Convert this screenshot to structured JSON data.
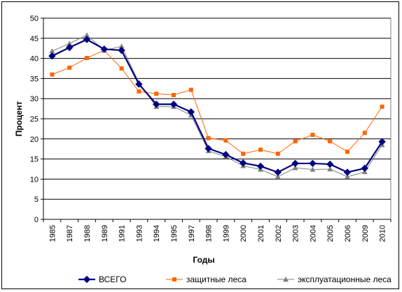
{
  "chart_data": {
    "type": "line",
    "title": "",
    "xlabel": "Годы",
    "ylabel": "Процент",
    "ylim": [
      0,
      50
    ],
    "yticks": [
      0,
      5,
      10,
      15,
      20,
      25,
      30,
      35,
      40,
      45,
      50
    ],
    "grid": "horizontal",
    "legend_position": "bottom",
    "categories": [
      "1985",
      "1987",
      "1988",
      "1989",
      "1991",
      "1993",
      "1994",
      "1995",
      "1997",
      "1998",
      "1999",
      "2000",
      "2001",
      "2002",
      "2003",
      "2004",
      "2005",
      "2006",
      "2009",
      "2010"
    ],
    "series": [
      {
        "name": "ВСЕГО",
        "color": "#000080",
        "marker": "diamond",
        "values": [
          40.6,
          42.7,
          44.7,
          42.3,
          42.0,
          33.6,
          28.6,
          28.6,
          26.7,
          17.6,
          16.1,
          14.0,
          13.2,
          11.7,
          13.9,
          13.9,
          13.7,
          11.7,
          12.7,
          19.3
        ]
      },
      {
        "name": "защитные леса",
        "color": "#FF6600",
        "marker": "square",
        "values": [
          36.0,
          37.7,
          40.1,
          42.0,
          37.5,
          31.8,
          31.2,
          30.9,
          32.2,
          20.2,
          19.6,
          16.3,
          17.3,
          16.3,
          19.4,
          21.0,
          19.4,
          16.8,
          21.5,
          28.0
        ]
      },
      {
        "name": "эксплуатационные леса",
        "color": "#808080",
        "marker": "triangle",
        "values": [
          41.8,
          43.7,
          45.8,
          42.0,
          43.0,
          34.0,
          28.0,
          28.0,
          25.9,
          17.0,
          15.6,
          13.3,
          12.4,
          10.6,
          12.8,
          12.4,
          12.5,
          10.6,
          11.8,
          18.5
        ]
      }
    ]
  }
}
